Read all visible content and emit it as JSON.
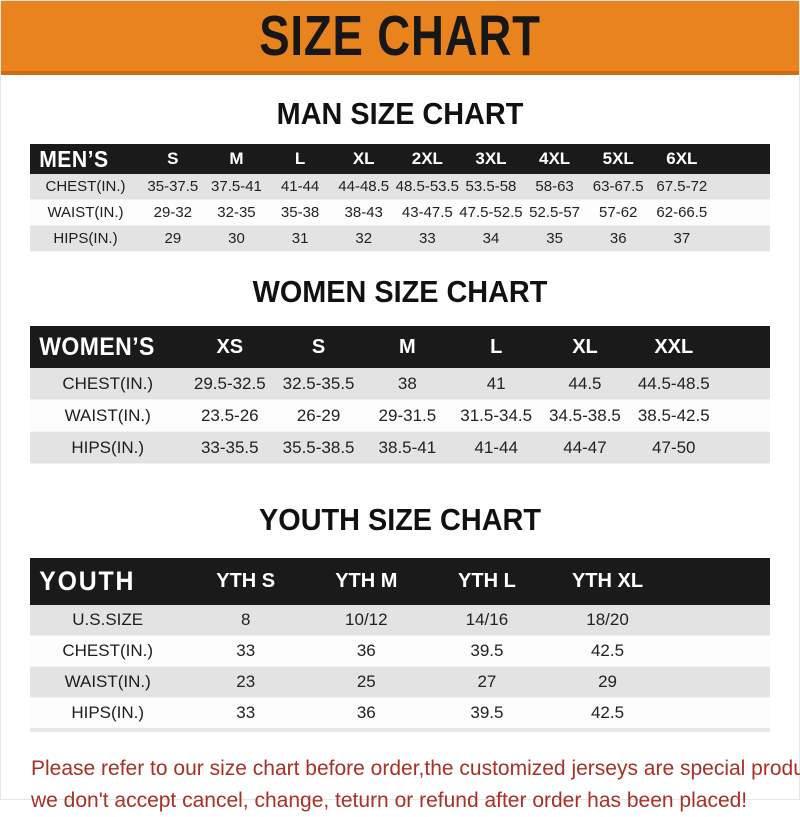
{
  "banner": {
    "title": "SIZE CHART",
    "bg_color": "#E8831E",
    "text_color": "#171717"
  },
  "tables": [
    {
      "id": "men",
      "title": "MAN SIZE CHART",
      "header_label": "MEN’S",
      "columns": [
        "S",
        "M",
        "L",
        "XL",
        "2XL",
        "3XL",
        "4XL",
        "5XL",
        "6XL"
      ],
      "rows": [
        {
          "label": "CHEST(IN.)",
          "values": [
            "35-37.5",
            "37.5-41",
            "41-44",
            "44-48.5",
            "48.5-53.5",
            "53.5-58",
            "58-63",
            "63-67.5",
            "67.5-72"
          ]
        },
        {
          "label": "WAIST(IN.)",
          "values": [
            "29-32",
            "32-35",
            "35-38",
            "38-43",
            "43-47.5",
            "47.5-52.5",
            "52.5-57",
            "57-62",
            "62-66.5"
          ]
        },
        {
          "label": "HIPS(IN.)",
          "values": [
            "29",
            "30",
            "31",
            "32",
            "33",
            "34",
            "35",
            "36",
            "37"
          ]
        }
      ]
    },
    {
      "id": "women",
      "title": "WOMEN SIZE CHART",
      "header_label": "WOMEN’S",
      "columns": [
        "XS",
        "S",
        "M",
        "L",
        "XL",
        "XXL"
      ],
      "rows": [
        {
          "label": "CHEST(IN.)",
          "values": [
            "29.5-32.5",
            "32.5-35.5",
            "38",
            "41",
            "44.5",
            "44.5-48.5"
          ]
        },
        {
          "label": "WAIST(IN.)",
          "values": [
            "23.5-26",
            "26-29",
            "29-31.5",
            "31.5-34.5",
            "34.5-38.5",
            "38.5-42.5"
          ]
        },
        {
          "label": "HIPS(IN.)",
          "values": [
            "33-35.5",
            "35.5-38.5",
            "38.5-41",
            "41-44",
            "44-47",
            "47-50"
          ]
        }
      ]
    },
    {
      "id": "youth",
      "title": "YOUTH SIZE CHART",
      "header_label": "YOUTH",
      "columns": [
        "YTH S",
        "YTH M",
        "YTH L",
        "YTH XL"
      ],
      "rows": [
        {
          "label": "U.S.SIZE",
          "values": [
            "8",
            "10/12",
            "14/16",
            "18/20"
          ]
        },
        {
          "label": "CHEST(IN.)",
          "values": [
            "33",
            "36",
            "39.5",
            "42.5"
          ]
        },
        {
          "label": "WAIST(IN.)",
          "values": [
            "23",
            "25",
            "27",
            "29"
          ]
        },
        {
          "label": "HIPS(IN.)",
          "values": [
            "33",
            "36",
            "39.5",
            "42.5"
          ]
        }
      ]
    }
  ],
  "footer": {
    "line1": "Please refer to our size chart before order,the customized jerseys are special products,",
    "line2": "we don't accept cancel, change, teturn or refund after order has been placed!",
    "text_color": "#A93026"
  },
  "colors": {
    "banner_bg": "#E8831E",
    "bar_bg": "#1a1a1a",
    "row_gray": "#e3e3e3",
    "footer_red": "#A93026"
  }
}
